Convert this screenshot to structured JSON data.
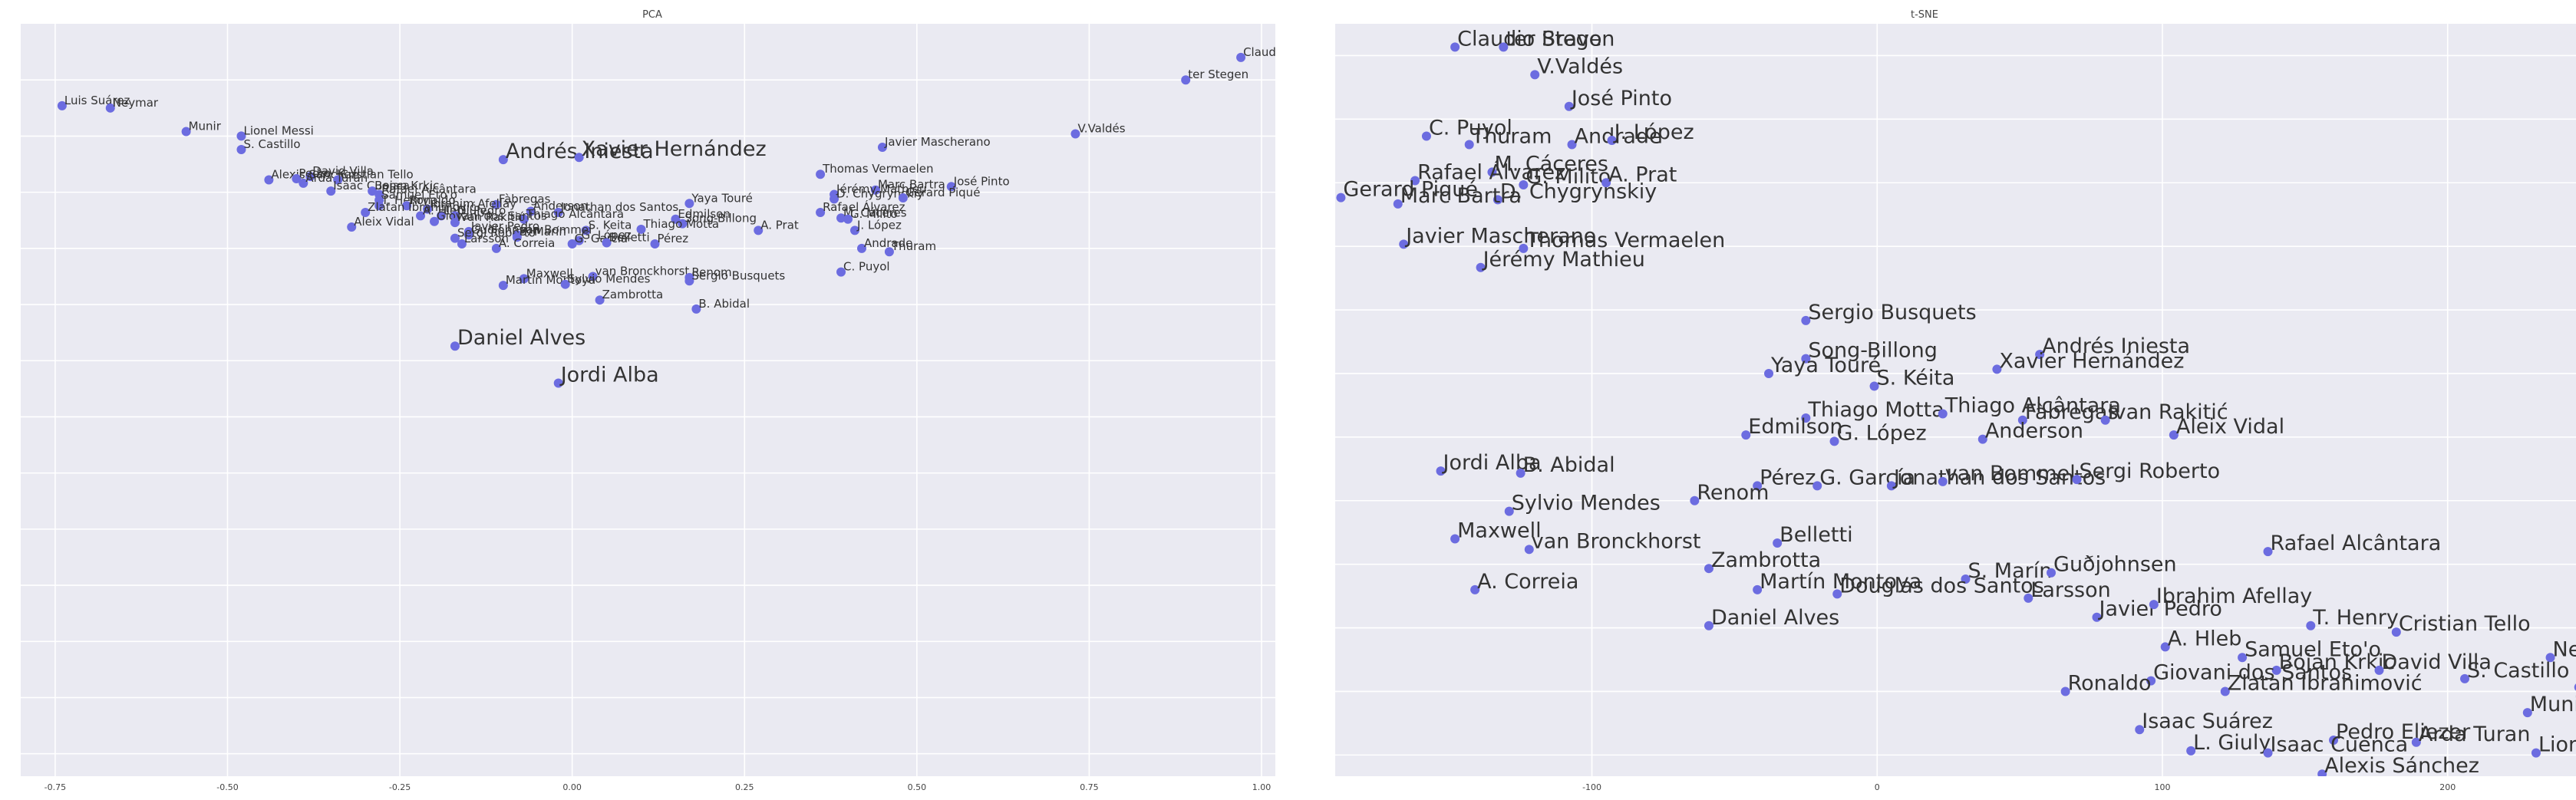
{
  "colors": {
    "background": "#eaeaf2",
    "grid": "#ffffff",
    "point": "#6c6ce0",
    "text": "#333333"
  },
  "chart_data": [
    {
      "type": "scatter",
      "title": "PCA",
      "xlim": [
        -0.8,
        1.02
      ],
      "ylim": [
        -0.27,
        0.4
      ],
      "xticks": [
        "-0.75",
        "-0.50",
        "-0.25",
        "0.00",
        "0.25",
        "0.50",
        "0.75",
        "1.00"
      ],
      "xtick_values": [
        -0.75,
        -0.5,
        -0.25,
        0,
        0.25,
        0.5,
        0.75,
        1.0
      ],
      "ygrid_values": [
        0.35,
        0.3,
        0.25,
        0.2,
        0.15,
        0.1,
        0.05,
        0,
        -0.05,
        -0.1,
        -0.15,
        -0.2,
        -0.25
      ],
      "points": [
        {
          "label": "Claudio Bravo",
          "x": 0.97,
          "y": 0.37,
          "size": 15
        },
        {
          "label": "ter Stegen",
          "x": 0.89,
          "y": 0.35,
          "size": 15
        },
        {
          "label": "Luis Suárez",
          "x": -0.74,
          "y": 0.327,
          "size": 15
        },
        {
          "label": "Neymar",
          "x": -0.67,
          "y": 0.325,
          "size": 15
        },
        {
          "label": "Munir",
          "x": -0.56,
          "y": 0.304,
          "size": 15
        },
        {
          "label": "Lionel Messi",
          "x": -0.48,
          "y": 0.3,
          "size": 15
        },
        {
          "label": "V.Valdés",
          "x": 0.73,
          "y": 0.302,
          "size": 15
        },
        {
          "label": "S. Castillo",
          "x": -0.48,
          "y": 0.288,
          "size": 15
        },
        {
          "label": "Javier Mascherano",
          "x": 0.45,
          "y": 0.29,
          "size": 15
        },
        {
          "label": "Andrés Iniesta",
          "x": -0.1,
          "y": 0.279,
          "size": 27
        },
        {
          "label": "Xavier Hernández",
          "x": 0.01,
          "y": 0.281,
          "size": 27
        },
        {
          "label": "Thomas Vermaelen",
          "x": 0.36,
          "y": 0.266,
          "size": 15
        },
        {
          "label": "David Villa",
          "x": -0.38,
          "y": 0.264,
          "size": 15
        },
        {
          "label": "Alexis Sánchez",
          "x": -0.44,
          "y": 0.261,
          "size": 15
        },
        {
          "label": "Pedro",
          "x": -0.4,
          "y": 0.262,
          "size": 15
        },
        {
          "label": "Cristian Tello",
          "x": -0.34,
          "y": 0.261,
          "size": 15
        },
        {
          "label": "Arda Turan",
          "x": -0.39,
          "y": 0.258,
          "size": 15
        },
        {
          "label": "José Pinto",
          "x": 0.55,
          "y": 0.255,
          "size": 15
        },
        {
          "label": "Isaac Cuenca",
          "x": -0.35,
          "y": 0.251,
          "size": 15
        },
        {
          "label": "Bojan Krkic",
          "x": -0.29,
          "y": 0.251,
          "size": 15
        },
        {
          "label": "Marc Bartra",
          "x": 0.44,
          "y": 0.252,
          "size": 15
        },
        {
          "label": "Rafael Alcântara",
          "x": -0.28,
          "y": 0.248,
          "size": 15
        },
        {
          "label": "Jérémy Mathieu",
          "x": 0.38,
          "y": 0.248,
          "size": 15
        },
        {
          "label": "D. Chygrynskiy",
          "x": 0.38,
          "y": 0.244,
          "size": 15
        },
        {
          "label": "Gerard Piqué",
          "x": 0.48,
          "y": 0.245,
          "size": 15
        },
        {
          "label": "Samuel Eto'o",
          "x": -0.28,
          "y": 0.243,
          "size": 15
        },
        {
          "label": "Fàbregas",
          "x": -0.11,
          "y": 0.239,
          "size": 15
        },
        {
          "label": "Yaya Touré",
          "x": 0.17,
          "y": 0.24,
          "size": 15
        },
        {
          "label": "T. Henry",
          "x": -0.28,
          "y": 0.238,
          "size": 15
        },
        {
          "label": "Ronaldo",
          "x": -0.24,
          "y": 0.238,
          "size": 15
        },
        {
          "label": "Ibrahim Afellay",
          "x": -0.21,
          "y": 0.235,
          "size": 15
        },
        {
          "label": "Zlatan Ibrahimović",
          "x": -0.3,
          "y": 0.232,
          "size": 15
        },
        {
          "label": "Anderson",
          "x": -0.06,
          "y": 0.233,
          "size": 15
        },
        {
          "label": "Jonathan dos Santos",
          "x": -0.02,
          "y": 0.232,
          "size": 15
        },
        {
          "label": "Rafael Álvarez",
          "x": 0.36,
          "y": 0.232,
          "size": 15
        },
        {
          "label": "A. Hleb",
          "x": -0.22,
          "y": 0.229,
          "size": 15
        },
        {
          "label": "L. Giuly",
          "x": -0.19,
          "y": 0.229,
          "size": 15
        },
        {
          "label": "D. Pedro",
          "x": -0.17,
          "y": 0.229,
          "size": 15
        },
        {
          "label": "Thiago Alcântara",
          "x": -0.07,
          "y": 0.226,
          "size": 15
        },
        {
          "label": "Edmilson",
          "x": 0.15,
          "y": 0.226,
          "size": 15
        },
        {
          "label": "M. Cáceres",
          "x": 0.39,
          "y": 0.227,
          "size": 15
        },
        {
          "label": "G. Milito",
          "x": 0.4,
          "y": 0.226,
          "size": 15
        },
        {
          "label": "Giovani dos Santos",
          "x": -0.2,
          "y": 0.224,
          "size": 15
        },
        {
          "label": "Ivan Rakitić",
          "x": -0.17,
          "y": 0.223,
          "size": 15
        },
        {
          "label": "Song-Billong",
          "x": 0.16,
          "y": 0.222,
          "size": 15
        },
        {
          "label": "Aleix Vidal",
          "x": -0.32,
          "y": 0.219,
          "size": 15
        },
        {
          "label": "S. Keita",
          "x": 0.02,
          "y": 0.216,
          "size": 15
        },
        {
          "label": "Thiago Motta",
          "x": 0.1,
          "y": 0.217,
          "size": 15
        },
        {
          "label": "A. Prat",
          "x": 0.27,
          "y": 0.216,
          "size": 15
        },
        {
          "label": "J. López",
          "x": 0.41,
          "y": 0.216,
          "size": 15
        },
        {
          "label": "Javier Pedro",
          "x": -0.15,
          "y": 0.215,
          "size": 15
        },
        {
          "label": "Guðjohnsen",
          "x": -0.15,
          "y": 0.212,
          "size": 15
        },
        {
          "label": "van Bommel",
          "x": -0.08,
          "y": 0.212,
          "size": 15
        },
        {
          "label": "Sergi Roberto",
          "x": -0.17,
          "y": 0.209,
          "size": 15
        },
        {
          "label": "S. Marín",
          "x": -0.08,
          "y": 0.21,
          "size": 15
        },
        {
          "label": "G. López",
          "x": 0.01,
          "y": 0.207,
          "size": 15
        },
        {
          "label": "G. García",
          "x": 0,
          "y": 0.204,
          "size": 15
        },
        {
          "label": "Belletti",
          "x": 0.05,
          "y": 0.205,
          "size": 15
        },
        {
          "label": "Pérez",
          "x": 0.12,
          "y": 0.204,
          "size": 15
        },
        {
          "label": "Larsson",
          "x": -0.16,
          "y": 0.204,
          "size": 15
        },
        {
          "label": "A. Correia",
          "x": -0.11,
          "y": 0.2,
          "size": 15
        },
        {
          "label": "Andrade",
          "x": 0.42,
          "y": 0.2,
          "size": 15
        },
        {
          "label": "Thuram",
          "x": 0.46,
          "y": 0.197,
          "size": 15
        },
        {
          "label": "C. Puyol",
          "x": 0.39,
          "y": 0.179,
          "size": 15
        },
        {
          "label": "van Bronckhorst",
          "x": 0.03,
          "y": 0.175,
          "size": 15
        },
        {
          "label": "Maxwell",
          "x": -0.07,
          "y": 0.173,
          "size": 15
        },
        {
          "label": "Renom",
          "x": 0.17,
          "y": 0.174,
          "size": 15
        },
        {
          "label": "Sergio Busquets",
          "x": 0.17,
          "y": 0.171,
          "size": 15
        },
        {
          "label": "Martín Montoya",
          "x": -0.1,
          "y": 0.167,
          "size": 15
        },
        {
          "label": "Sylvio Mendes",
          "x": -0.01,
          "y": 0.168,
          "size": 15
        },
        {
          "label": "Zambrotta",
          "x": 0.04,
          "y": 0.154,
          "size": 15
        },
        {
          "label": "B. Abidal",
          "x": 0.18,
          "y": 0.146,
          "size": 15
        },
        {
          "label": "Daniel Alves",
          "x": -0.17,
          "y": 0.113,
          "size": 27
        },
        {
          "label": "Jordi Alba",
          "x": -0.02,
          "y": 0.08,
          "size": 27
        }
      ]
    },
    {
      "type": "scatter",
      "title": "t-SNE",
      "xlim": [
        -190,
        245
      ],
      "ylim": [
        -235,
        120
      ],
      "xticks": [
        "-100",
        "0",
        "100",
        "200"
      ],
      "xtick_values": [
        -100,
        0,
        100,
        200
      ],
      "ygrid_values": [
        105,
        75,
        45,
        15,
        -15,
        -45,
        -75,
        -105,
        -135,
        -165,
        -195,
        -225
      ],
      "points": [
        {
          "label": "Claudio Bravo",
          "x": -148,
          "y": 109,
          "size": 27
        },
        {
          "label": "ter Stegen",
          "x": -131,
          "y": 109,
          "size": 27
        },
        {
          "label": "V.Valdés",
          "x": -120,
          "y": 96,
          "size": 27
        },
        {
          "label": "José Pinto",
          "x": -108,
          "y": 81,
          "size": 27
        },
        {
          "label": "C. Puyol",
          "x": -158,
          "y": 67,
          "size": 27
        },
        {
          "label": "Thuram",
          "x": -143,
          "y": 63,
          "size": 27
        },
        {
          "label": "Andrade",
          "x": -107,
          "y": 63,
          "size": 27
        },
        {
          "label": "J. López",
          "x": -93,
          "y": 65,
          "size": 27
        },
        {
          "label": "M. Cáceres",
          "x": -135,
          "y": 50,
          "size": 27
        },
        {
          "label": "Rafael Álvarez",
          "x": -162,
          "y": 46,
          "size": 27
        },
        {
          "label": "G. Milito",
          "x": -124,
          "y": 44,
          "size": 27
        },
        {
          "label": "A. Prat",
          "x": -95,
          "y": 45,
          "size": 27
        },
        {
          "label": "Gerard Piqué",
          "x": -188,
          "y": 38,
          "size": 27
        },
        {
          "label": "D. Chygrynskiy",
          "x": -133,
          "y": 37,
          "size": 27
        },
        {
          "label": "Marc Bartra",
          "x": -168,
          "y": 35,
          "size": 27
        },
        {
          "label": "Javier Mascherano",
          "x": -166,
          "y": 16,
          "size": 27
        },
        {
          "label": "Thomas Vermaelen",
          "x": -124,
          "y": 14,
          "size": 27
        },
        {
          "label": "Jérémy Mathieu",
          "x": -139,
          "y": 5,
          "size": 27
        },
        {
          "label": "Sergio Busquets",
          "x": -25,
          "y": -20,
          "size": 27
        },
        {
          "label": "Song-Billong",
          "x": -25,
          "y": -38,
          "size": 27
        },
        {
          "label": "Andrés Iniesta",
          "x": 57,
          "y": -36,
          "size": 27
        },
        {
          "label": "Yaya Touré",
          "x": -38,
          "y": -45,
          "size": 27
        },
        {
          "label": "Xavier Hernández",
          "x": 42,
          "y": -43,
          "size": 27
        },
        {
          "label": "S. Kéita",
          "x": -1,
          "y": -51,
          "size": 27
        },
        {
          "label": "Thiago Motta",
          "x": -25,
          "y": -66,
          "size": 27
        },
        {
          "label": "Thiago Alcântara",
          "x": 23,
          "y": -64,
          "size": 27
        },
        {
          "label": "Fàbregas",
          "x": 51,
          "y": -67,
          "size": 27
        },
        {
          "label": "Ivan Rakitić",
          "x": 80,
          "y": -67,
          "size": 27
        },
        {
          "label": "Aleix Vidal",
          "x": 104,
          "y": -74,
          "size": 27
        },
        {
          "label": "Edmilson",
          "x": -46,
          "y": -74,
          "size": 27
        },
        {
          "label": "G. López",
          "x": -15,
          "y": -77,
          "size": 27
        },
        {
          "label": "Anderson",
          "x": 37,
          "y": -76,
          "size": 27
        },
        {
          "label": "Jordi Alba",
          "x": -153,
          "y": -91,
          "size": 27
        },
        {
          "label": "B. Abidal",
          "x": -125,
          "y": -92,
          "size": 27
        },
        {
          "label": "Pérez",
          "x": -42,
          "y": -98,
          "size": 27
        },
        {
          "label": "G. García",
          "x": -21,
          "y": -98,
          "size": 27
        },
        {
          "label": "Jonathan dos Santos",
          "x": 5,
          "y": -98,
          "size": 27
        },
        {
          "label": "van Bommel",
          "x": 23,
          "y": -96,
          "size": 27
        },
        {
          "label": "Sergi Roberto",
          "x": 70,
          "y": -95,
          "size": 27
        },
        {
          "label": "Sylvio Mendes",
          "x": -129,
          "y": -110,
          "size": 27
        },
        {
          "label": "Renom",
          "x": -64,
          "y": -105,
          "size": 27
        },
        {
          "label": "Maxwell",
          "x": -148,
          "y": -123,
          "size": 27
        },
        {
          "label": "van Bronckhorst",
          "x": -122,
          "y": -128,
          "size": 27
        },
        {
          "label": "Belletti",
          "x": -35,
          "y": -125,
          "size": 27
        },
        {
          "label": "Rafael Alcântara",
          "x": 137,
          "y": -129,
          "size": 27
        },
        {
          "label": "Zambrotta",
          "x": -59,
          "y": -137,
          "size": 27
        },
        {
          "label": "S. Marín",
          "x": 31,
          "y": -142,
          "size": 27
        },
        {
          "label": "Guðjohnsen",
          "x": 61,
          "y": -139,
          "size": 27
        },
        {
          "label": "A. Correia",
          "x": -141,
          "y": -147,
          "size": 27
        },
        {
          "label": "Martín Montoya",
          "x": -42,
          "y": -147,
          "size": 27
        },
        {
          "label": "Douglas dos Santos",
          "x": -14,
          "y": -149,
          "size": 27
        },
        {
          "label": "Larsson",
          "x": 53,
          "y": -151,
          "size": 27
        },
        {
          "label": "Javier Pedro",
          "x": 77,
          "y": -160,
          "size": 27
        },
        {
          "label": "Ibrahim Afellay",
          "x": 97,
          "y": -154,
          "size": 27
        },
        {
          "label": "Daniel Alves",
          "x": -59,
          "y": -164,
          "size": 27
        },
        {
          "label": "T. Henry",
          "x": 152,
          "y": -164,
          "size": 27
        },
        {
          "label": "Cristian Tello",
          "x": 182,
          "y": -167,
          "size": 27
        },
        {
          "label": "A. Hleb",
          "x": 101,
          "y": -174,
          "size": 27
        },
        {
          "label": "Samuel Eto'o",
          "x": 128,
          "y": -179,
          "size": 27
        },
        {
          "label": "Bojan Krkic",
          "x": 140,
          "y": -185,
          "size": 27
        },
        {
          "label": "David Villa",
          "x": 176,
          "y": -185,
          "size": 27
        },
        {
          "label": "Neymar",
          "x": 236,
          "y": -179,
          "size": 27
        },
        {
          "label": "S. Castillo",
          "x": 206,
          "y": -189,
          "size": 27
        },
        {
          "label": "Luis Suárez",
          "x": 246,
          "y": -193,
          "size": 27
        },
        {
          "label": "Giovani dos Santos",
          "x": 96,
          "y": -190,
          "size": 27
        },
        {
          "label": "Ronaldo",
          "x": 66,
          "y": -195,
          "size": 27
        },
        {
          "label": "Zlatan Ibrahimović",
          "x": 122,
          "y": -195,
          "size": 27
        },
        {
          "label": "Munir",
          "x": 228,
          "y": -205,
          "size": 27
        },
        {
          "label": "Isaac Suárez",
          "x": 92,
          "y": -213,
          "size": 27
        },
        {
          "label": "Pedro Eliezer",
          "x": 160,
          "y": -218,
          "size": 27
        },
        {
          "label": "Arda Turan",
          "x": 189,
          "y": -219,
          "size": 27
        },
        {
          "label": "L. Giuly",
          "x": 110,
          "y": -223,
          "size": 27
        },
        {
          "label": "Isaac Cuenca",
          "x": 137,
          "y": -224,
          "size": 27
        },
        {
          "label": "Lionel Messi",
          "x": 231,
          "y": -224,
          "size": 27
        },
        {
          "label": "Alexis Sánchez",
          "x": 156,
          "y": -234,
          "size": 27
        }
      ]
    }
  ]
}
